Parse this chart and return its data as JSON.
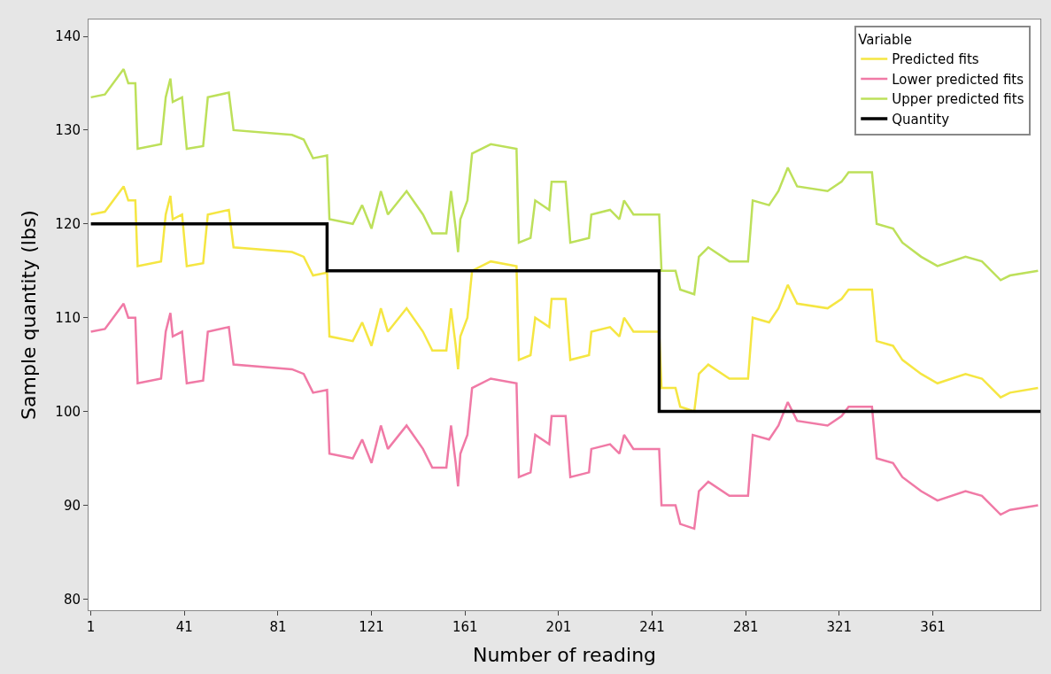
{
  "chart_data": {
    "type": "line",
    "xlabel": "Number of reading",
    "ylabel": "Sample quantity (lbs)",
    "legend_title": "Variable",
    "x": [
      1,
      7,
      15,
      17,
      20,
      21,
      31,
      33,
      35,
      36,
      40,
      42,
      49,
      51,
      60,
      62,
      87,
      92,
      96,
      102,
      103,
      113,
      117,
      121,
      125,
      128,
      136,
      143,
      147,
      153,
      155,
      157,
      158,
      159,
      162,
      164,
      172,
      183,
      184,
      189,
      191,
      197,
      198,
      204,
      206,
      214,
      215,
      223,
      227,
      229,
      233,
      244,
      245,
      251,
      253,
      259,
      261,
      265,
      274,
      282,
      284,
      291,
      295,
      299,
      303,
      316,
      322,
      325,
      335,
      337,
      344,
      348,
      356,
      363,
      375,
      382,
      390,
      394,
      406
    ],
    "series": [
      {
        "name": "Predicted fits",
        "color": "#f5e642",
        "values": [
          121,
          121.3,
          124,
          122.5,
          122.5,
          115.5,
          116,
          121,
          123,
          120.5,
          121,
          115.5,
          115.8,
          121,
          121.5,
          117.5,
          117,
          116.5,
          114.5,
          114.8,
          108,
          107.5,
          109.5,
          107,
          111,
          108.5,
          111,
          108.5,
          106.5,
          106.5,
          111,
          107,
          104.5,
          108,
          110,
          115,
          116,
          115.5,
          105.5,
          106,
          110,
          109,
          112,
          112,
          105.5,
          106,
          108.5,
          109,
          108,
          110,
          108.5,
          108.5,
          102.5,
          102.5,
          100.5,
          100,
          104,
          105,
          103.5,
          103.5,
          110,
          109.5,
          111,
          113.5,
          111.5,
          111,
          112,
          113,
          113,
          107.5,
          107,
          105.5,
          104,
          103,
          104,
          103.5,
          101.5,
          102,
          102.5
        ]
      },
      {
        "name": "Lower predicted fits",
        "color": "#f07aa6",
        "values": [
          108.5,
          108.8,
          111.5,
          110,
          110,
          103,
          103.5,
          108.5,
          110.5,
          108,
          108.5,
          103,
          103.3,
          108.5,
          109,
          105,
          104.5,
          104,
          102,
          102.3,
          95.5,
          95,
          97,
          94.5,
          98.5,
          96,
          98.5,
          96,
          94,
          94,
          98.5,
          94.5,
          92,
          95.5,
          97.5,
          102.5,
          103.5,
          103,
          93,
          93.5,
          97.5,
          96.5,
          99.5,
          99.5,
          93,
          93.5,
          96,
          96.5,
          95.5,
          97.5,
          96,
          96,
          90,
          90,
          88,
          87.5,
          91.5,
          92.5,
          91,
          91,
          97.5,
          97,
          98.5,
          101,
          99,
          98.5,
          99.5,
          100.5,
          100.5,
          95,
          94.5,
          93,
          91.5,
          90.5,
          91.5,
          91,
          89,
          89.5,
          90
        ]
      },
      {
        "name": "Upper predicted fits",
        "color": "#bde05a",
        "values": [
          133.5,
          133.8,
          136.5,
          135,
          135,
          128,
          128.5,
          133.5,
          135.5,
          133,
          133.5,
          128,
          128.3,
          133.5,
          134,
          130,
          129.5,
          129,
          127,
          127.3,
          120.5,
          120,
          122,
          119.5,
          123.5,
          121,
          123.5,
          121,
          119,
          119,
          123.5,
          119.5,
          117,
          120.5,
          122.5,
          127.5,
          128.5,
          128,
          118,
          118.5,
          122.5,
          121.5,
          124.5,
          124.5,
          118,
          118.5,
          121,
          121.5,
          120.5,
          122.5,
          121,
          121,
          115,
          115,
          113,
          112.5,
          116.5,
          117.5,
          116,
          116,
          122.5,
          122,
          123.5,
          126,
          124,
          123.5,
          124.5,
          125.5,
          125.5,
          120,
          119.5,
          118,
          116.5,
          115.5,
          116.5,
          116,
          114,
          114.5,
          115
        ]
      },
      {
        "name": "Quantity",
        "type": "step",
        "color": "#000000",
        "x": [
          1,
          102,
          244,
          407
        ],
        "values": [
          120,
          115,
          100,
          100
        ]
      }
    ],
    "xlim": [
      0,
      407
    ],
    "xticks": [
      1,
      41,
      81,
      121,
      161,
      201,
      241,
      281,
      321,
      361
    ],
    "ylim": [
      78.8,
      141.8
    ],
    "yticks": [
      80,
      90,
      100,
      110,
      120,
      130,
      140
    ],
    "legend": "top right",
    "marker": "none",
    "line_style": "solid"
  }
}
